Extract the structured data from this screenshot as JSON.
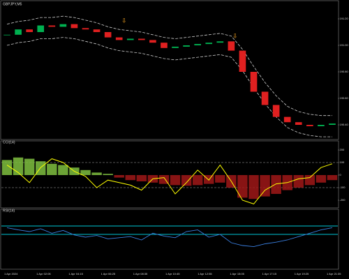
{
  "chart_data": [
    {
      "type": "candlestick",
      "title": "GBPJPY,M5",
      "series": [
        {
          "name": "Close",
          "up_color": "#00b050",
          "down_color": "#e02020",
          "values": [
            191.08,
            191.12,
            191.1,
            191.15,
            191.14,
            191.16,
            191.13,
            191.12,
            191.1,
            191.06,
            191.04,
            191.05,
            191.04,
            191.02,
            190.98,
            190.99,
            191.0,
            191.01,
            191.02,
            191.03,
            190.96,
            190.8,
            190.65,
            190.55,
            190.46,
            190.42,
            190.4,
            190.39,
            190.4,
            190.41
          ]
        },
        {
          "name": "Upper",
          "color": "#d0d0d0",
          "values": [
            191.16,
            191.18,
            191.19,
            191.21,
            191.21,
            191.22,
            191.21,
            191.19,
            191.17,
            191.14,
            191.12,
            191.11,
            191.1,
            191.08,
            191.06,
            191.05,
            191.06,
            191.07,
            191.08,
            191.09,
            191.07,
            190.97,
            190.84,
            190.72,
            190.62,
            190.54,
            190.5,
            190.48,
            190.47,
            190.47
          ]
        },
        {
          "name": "Lower",
          "color": "#d0d0d0",
          "values": [
            191.0,
            191.02,
            191.03,
            191.05,
            191.05,
            191.06,
            191.05,
            191.03,
            191.01,
            190.98,
            190.96,
            190.95,
            190.94,
            190.92,
            190.9,
            190.89,
            190.9,
            190.91,
            190.92,
            190.93,
            190.91,
            190.81,
            190.68,
            190.56,
            190.46,
            190.38,
            190.34,
            190.32,
            190.31,
            190.31
          ]
        }
      ],
      "ylim": [
        190.3,
        191.3
      ],
      "yticks": [
        {
          "value": 190.4,
          "label": "190.40"
        },
        {
          "value": 190.6,
          "label": "190.60"
        },
        {
          "value": 190.8,
          "label": "190.80"
        },
        {
          "value": 191.0,
          "label": "191.00"
        },
        {
          "value": 191.2,
          "label": "191.20"
        }
      ]
    },
    {
      "type": "histogram-line",
      "title": "CCI(14)",
      "series": [
        {
          "name": "Histogram",
          "up_color": "#7fbf3f",
          "down_color": "#a01818",
          "values": [
            120,
            140,
            130,
            110,
            90,
            80,
            60,
            40,
            20,
            10,
            -20,
            -40,
            -50,
            -60,
            -70,
            -80,
            -85,
            -80,
            -70,
            -60,
            -100,
            -180,
            -190,
            -170,
            -150,
            -120,
            -100,
            -80,
            -60,
            -40
          ]
        },
        {
          "name": "CCI",
          "color": "#ffff00",
          "values": [
            80,
            20,
            -60,
            60,
            130,
            100,
            30,
            -10,
            -100,
            -40,
            -60,
            -80,
            -120,
            -30,
            -20,
            -150,
            -60,
            40,
            -40,
            80,
            -50,
            -200,
            -230,
            -120,
            -70,
            -60,
            -30,
            -20,
            60,
            90
          ]
        }
      ],
      "ylim": [
        -250,
        250
      ],
      "yticks": [
        -200,
        -100,
        0,
        100,
        200
      ],
      "levels": [
        100,
        -100
      ]
    },
    {
      "type": "line",
      "title": "RSI(14)",
      "series": [
        {
          "name": "RSI",
          "color": "#3a7fe0",
          "values": [
            72,
            68,
            65,
            70,
            62,
            67,
            59,
            55,
            58,
            52,
            54,
            56,
            50,
            62,
            57,
            54,
            65,
            68,
            55,
            60,
            45,
            40,
            38,
            43,
            46,
            50,
            56,
            62,
            68,
            72
          ]
        }
      ],
      "ylim": [
        0,
        100
      ],
      "levels": [
        75,
        60
      ],
      "level_color": "#00c8d8"
    }
  ],
  "time_axis": [
    "1 Apr 2024",
    "1 Apr 02:05",
    "1 Apr 04:15",
    "1 Apr 06:25",
    "1 Apr 08:35",
    "1 Apr 10:45",
    "1 Apr 12:55",
    "1 Apr 15:05",
    "1 Apr 17:15",
    "1 Apr 19:25",
    "1 Apr 21:35"
  ]
}
